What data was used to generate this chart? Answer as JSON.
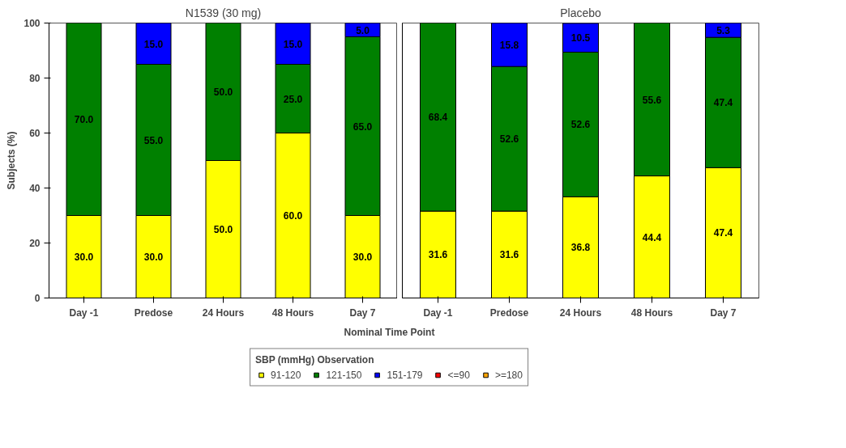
{
  "chart_data": [
    {
      "type": "bar",
      "title": "N1539 (30 mg)",
      "xlabel": "Nominal Time Point",
      "ylabel": "Subjects (%)",
      "categories": [
        "Day -1",
        "Predose",
        "24 Hours",
        "48 Hours",
        "Day 7"
      ],
      "stacked": true,
      "ylim": [
        0,
        100
      ],
      "yticks": [
        0,
        20,
        40,
        60,
        80,
        100
      ],
      "legend": "bottom",
      "legend_title": "SBP (mmHg) Observation",
      "series": [
        {
          "name": "91-120",
          "color": "#ffff00",
          "values": [
            30,
            30,
            50,
            60,
            30
          ],
          "value_labels": [
            "30.0",
            "30.0",
            "50.0",
            "60.0",
            "30.0"
          ]
        },
        {
          "name": "121-150",
          "color": "#008000",
          "values": [
            70,
            55,
            50,
            25,
            65
          ],
          "value_labels": [
            "70.0",
            "55.0",
            "50.0",
            "25.0",
            "65.0"
          ]
        },
        {
          "name": "151-179",
          "color": "#0000ff",
          "values": [
            null,
            15,
            null,
            15,
            5
          ],
          "value_labels": [
            null,
            "15.0",
            null,
            "15.0",
            "5.0"
          ]
        },
        {
          "name": "<=90",
          "color": "#ff0000",
          "values": [
            null,
            null,
            null,
            null,
            null
          ]
        },
        {
          "name": ">=180",
          "color": "#ffa500",
          "values": [
            null,
            null,
            null,
            null,
            null
          ]
        }
      ]
    },
    {
      "type": "bar",
      "title": "Placebo",
      "categories": [
        "Day -1",
        "Predose",
        "24 Hours",
        "48 Hours",
        "Day 7"
      ],
      "stacked": true,
      "ylim": [
        0,
        100
      ],
      "yticks": [
        0,
        20,
        40,
        60,
        80,
        100
      ],
      "tick_labels": "x",
      "series": [
        {
          "color": "#ffff00",
          "values": [
            31.6,
            31.6,
            36.8,
            44.4,
            47.4
          ],
          "value_labels": [
            "31.6",
            "31.6",
            "36.8",
            "44.4",
            "47.4"
          ]
        },
        {
          "color": "#008000",
          "values": [
            68.4,
            52.6,
            52.6,
            55.6,
            47.4
          ],
          "value_labels": [
            "68.4",
            "52.6",
            "52.6",
            "55.6",
            "47.4"
          ]
        },
        {
          "color": "#0000ff",
          "values": [
            null,
            15.8,
            10.5,
            null,
            5.3
          ],
          "value_labels": [
            null,
            "15.8",
            "10.5",
            null,
            "5.3"
          ]
        }
      ]
    }
  ]
}
